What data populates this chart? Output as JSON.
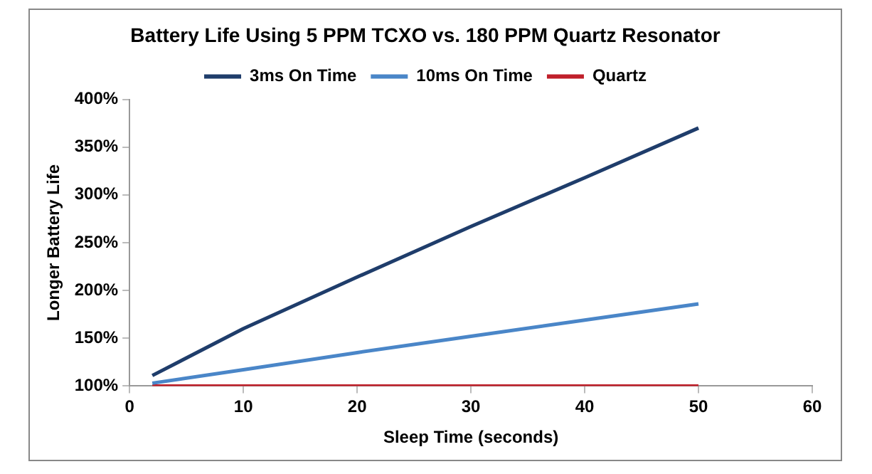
{
  "chart_data": {
    "type": "line",
    "title": "Battery Life Using 5 PPM TCXO vs. 180 PPM Quartz Resonator",
    "xlabel": "Sleep Time (seconds)",
    "ylabel": "Longer Battery Life",
    "series": [
      {
        "name": "3ms On Time",
        "color": "#1f3d6b",
        "x": [
          2,
          10,
          20,
          30,
          40,
          50
        ],
        "values": [
          111,
          160,
          214,
          267,
          318,
          370
        ]
      },
      {
        "name": "10ms On Time",
        "color": "#4a86c8",
        "x": [
          2,
          10,
          20,
          30,
          40,
          50
        ],
        "values": [
          103,
          117,
          135,
          152,
          169,
          186
        ]
      },
      {
        "name": "Quartz",
        "color": "#c0202a",
        "x": [
          2,
          50
        ],
        "values": [
          100,
          100
        ]
      }
    ],
    "xlim": [
      0,
      60
    ],
    "xticks": [
      0,
      10,
      20,
      30,
      40,
      50,
      60
    ],
    "ylim": [
      100,
      400
    ],
    "yticks": [
      {
        "value": 100,
        "label": "100%"
      },
      {
        "value": 150,
        "label": "150%"
      },
      {
        "value": 200,
        "label": "200%"
      },
      {
        "value": 250,
        "label": "250%"
      },
      {
        "value": 300,
        "label": "300%"
      },
      {
        "value": 350,
        "label": "350%"
      },
      {
        "value": 400,
        "label": "400%"
      }
    ],
    "grid": false,
    "legend": "top",
    "marker": "none",
    "line_style": "solid"
  }
}
